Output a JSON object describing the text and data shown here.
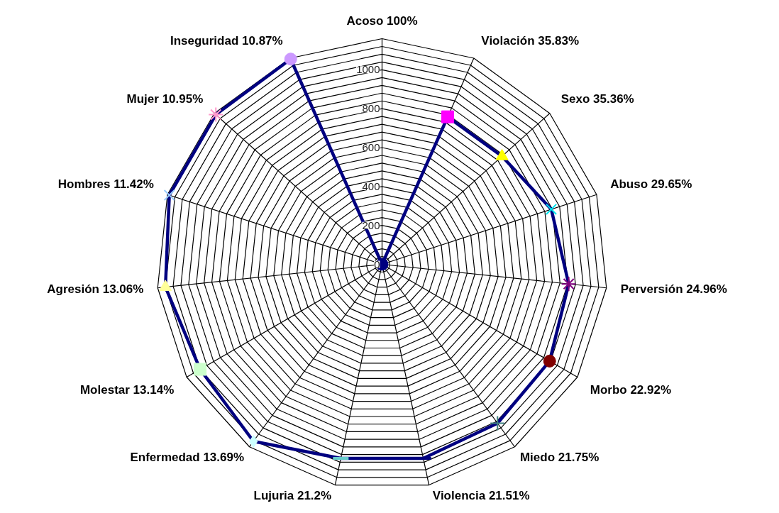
{
  "chart_data": {
    "type": "radar",
    "categories": [
      "Acoso 100%",
      "Violación 35.83%",
      "Sexo 35.36%",
      "Abuso 29.65%",
      "Perversión 24.96%",
      "Morbo 22.92%",
      "Miedo 21.75%",
      "Violencia 21.51%",
      "Lujuria 21.2%",
      "Enfermedad 13.69%",
      "Molestar 13.14%",
      "Agresión 13.06%",
      "Hombres 11.42%",
      "Mujer 10.95%",
      "Inseguridad 10.87%"
    ],
    "ylim": [
      0,
      1160
    ],
    "yticks": [
      0,
      200,
      400,
      600,
      800,
      1000
    ],
    "grid": true,
    "series": [
      {
        "color": "#000080",
        "values": [
          0,
          830,
          830,
          915,
          965,
          995,
          1010,
          1020,
          1020,
          1125,
          1080,
          1120,
          1150,
          1150,
          1155
        ],
        "marker": [
          "circle",
          "square",
          "triangle",
          "x",
          "asterisk",
          "circle",
          "cross",
          "dash",
          "dash",
          "diamond",
          "square",
          "triangle",
          "x",
          "asterisk",
          "circle"
        ],
        "colors": [
          "#000080",
          "#ff00ff",
          "#ffff00",
          "#00e5ee",
          "#800080",
          "#800000",
          "#408080",
          "#000080",
          "#66cccc",
          "#ccffff",
          "#ccffcc",
          "#ffff99",
          "#99ccff",
          "#ff99cc",
          "#cc99ff"
        ]
      }
    ]
  }
}
